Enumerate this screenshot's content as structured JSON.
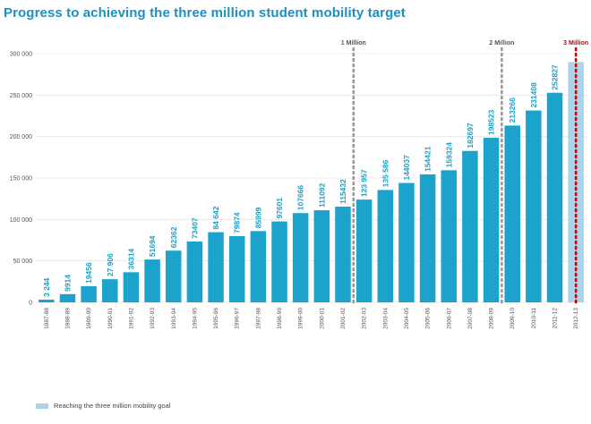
{
  "chart_data": {
    "type": "bar",
    "title": "Progress to achieving the three million student mobility target",
    "xlabel": "",
    "ylabel": "",
    "ylim": [
      0,
      300000
    ],
    "yticks": [
      0,
      50000,
      100000,
      150000,
      200000,
      250000,
      300000
    ],
    "ytick_labels": [
      "0",
      "50 000",
      "100 000",
      "150 000",
      "200 000",
      "250 000",
      "300 000"
    ],
    "categories": [
      "1987-88",
      "1988-89",
      "1989-90",
      "1990-91",
      "1991-92",
      "1992-93",
      "1993-94",
      "1994-95",
      "1995-96",
      "1996-97",
      "1997-98",
      "1998-99",
      "1999-00",
      "2000-01",
      "2001-02",
      "2002-03",
      "2003-04",
      "2004-05",
      "2005-06",
      "2006-07",
      "2007-08",
      "2008-09",
      "2009-10",
      "2010-11",
      "2011-12",
      "2012-13"
    ],
    "values": [
      3244,
      9914,
      19456,
      27906,
      36314,
      51694,
      62362,
      73407,
      84642,
      79874,
      85999,
      97601,
      107666,
      111092,
      115432,
      123957,
      135586,
      144037,
      154421,
      159324,
      182697,
      198523,
      213266,
      231408,
      252827,
      290000
    ],
    "value_labels": [
      "3 244",
      "9914",
      "19456",
      "27 906",
      "36314",
      "51694",
      "62362",
      "73407",
      "84 642",
      "79874",
      "85999",
      "97601",
      "107666",
      "111092",
      "115432",
      "123 957",
      "135 586",
      "144037",
      "154421",
      "159324",
      "182697",
      "198523",
      "213266",
      "231408",
      "252827",
      ""
    ],
    "goal_bar": {
      "category": "2012-13",
      "value": 290000
    },
    "milestones": [
      {
        "label": "1 Million",
        "after_category": "2001-02",
        "color": "#999999"
      },
      {
        "label": "2 Million",
        "after_category": "2008-09",
        "color": "#999999"
      },
      {
        "label": "3 Million",
        "after_category": "2012-13",
        "color": "#cc0000"
      }
    ],
    "legend": [
      {
        "label": "Reaching the three million mobility goal",
        "color": "#a9d4ea"
      }
    ],
    "colors": {
      "bar": "#1ba3cc",
      "goal": "#a9d4ea",
      "value_label": "#1aa1c6",
      "grid": "#e6e6e6",
      "axis_text": "#555555"
    }
  }
}
